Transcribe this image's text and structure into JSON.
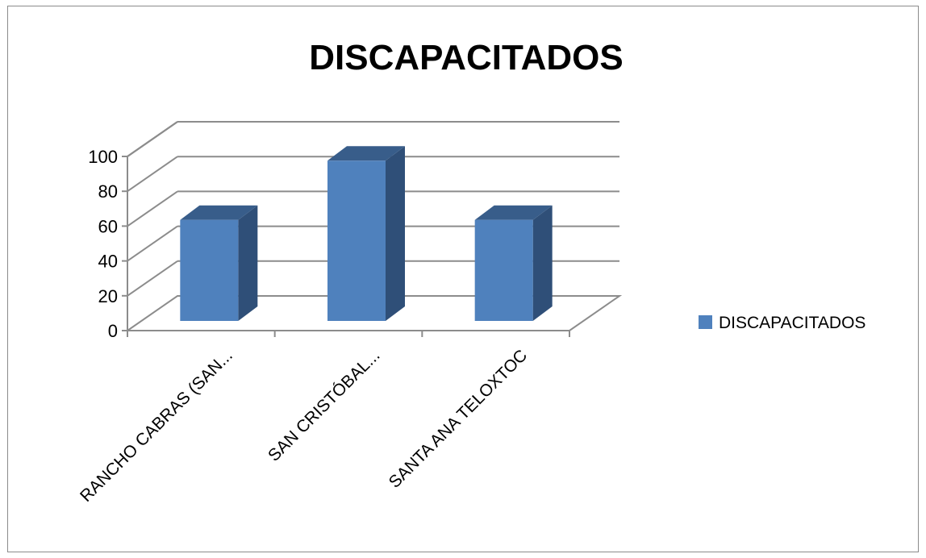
{
  "chart_data": {
    "type": "bar",
    "title": "DISCAPACITADOS",
    "categories": [
      "RANCHO CABRAS (SAN...",
      "SAN CRISTÓBAL...",
      "SANTA ANA TELOXTOC"
    ],
    "series": [
      {
        "name": "DISCAPACITADOS",
        "values": [
          58,
          92,
          58
        ]
      }
    ],
    "y_ticks": [
      "0",
      "20",
      "40",
      "60",
      "80",
      "100"
    ],
    "ylim": [
      0,
      100
    ],
    "xlabel": "",
    "ylabel": "",
    "grid": true,
    "three_d": true,
    "legend_position": "right",
    "colors": {
      "bar_front": "#4F81BD",
      "bar_top": "#385D8A",
      "bar_side": "#2F4F78",
      "gridline": "#8C8C8C",
      "axis": "#8C8C8C"
    }
  }
}
